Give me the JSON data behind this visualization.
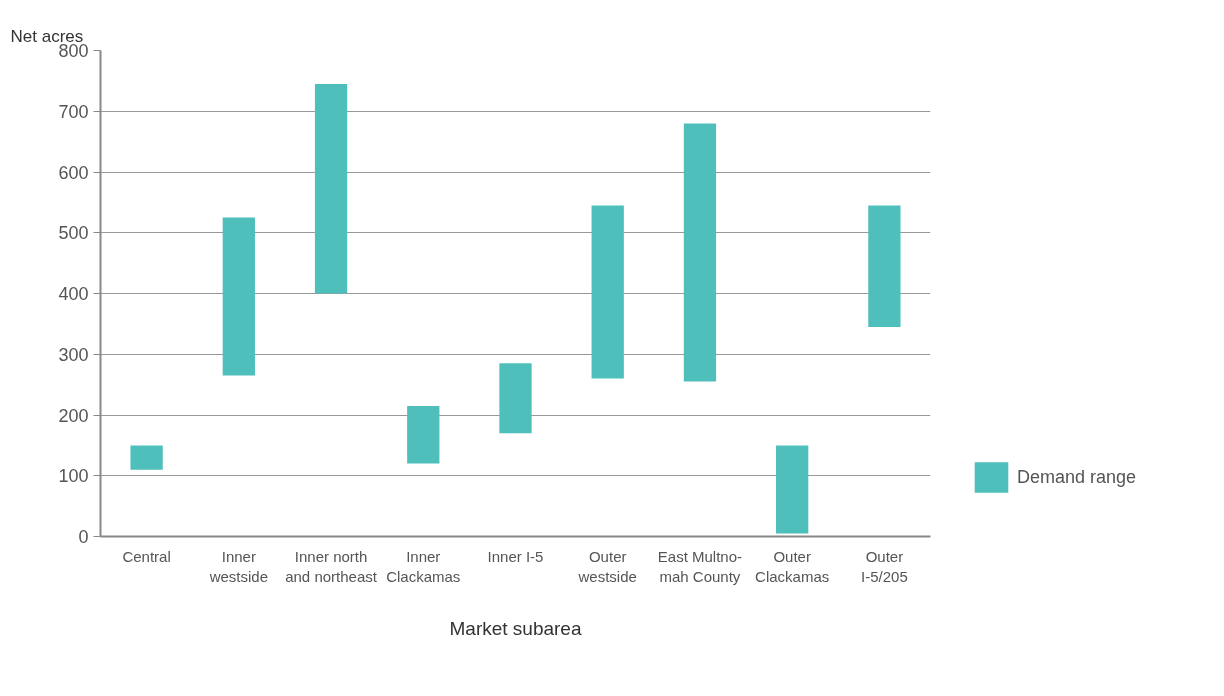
{
  "chart_data": {
    "type": "bar",
    "ylabel": "Net acres",
    "xlabel": "Market subarea",
    "categories": [
      "Central",
      "Inner\nwestside",
      "Inner north\nand northeast",
      "Inner\nClackamas",
      "Inner I-5",
      "Outer\nwestside",
      "East Multno-\nmah County",
      "Outer\nClackamas",
      "Outer\nI-5/205"
    ],
    "series": [
      {
        "name": "Demand range",
        "color": "#4ebfbb",
        "base": [
          110,
          265,
          400,
          120,
          170,
          260,
          255,
          5,
          345
        ],
        "values": [
          40,
          260,
          345,
          95,
          115,
          285,
          425,
          145,
          200
        ]
      }
    ],
    "ylim": [
      0,
      800
    ],
    "yticks": [
      0,
      100,
      200,
      300,
      400,
      500,
      600,
      700,
      800
    ],
    "grid": "y",
    "legend": "right"
  }
}
